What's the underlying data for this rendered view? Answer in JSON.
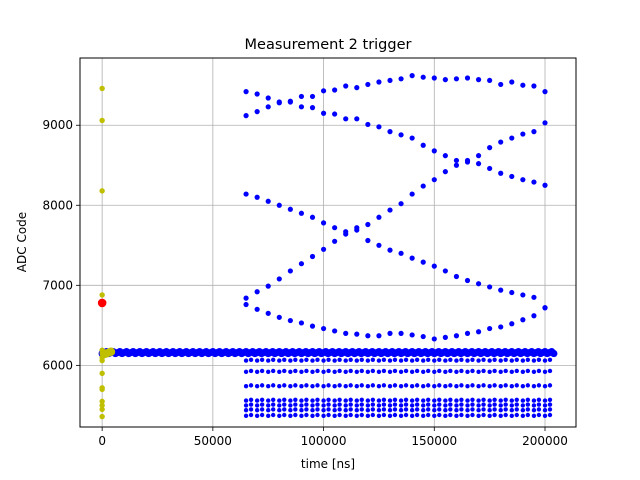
{
  "chart_data": {
    "type": "scatter",
    "title": "Measurement 2 trigger",
    "xlabel": "time [ns]",
    "ylabel": "ADC Code",
    "xlim": [
      -10000,
      214000
    ],
    "ylim": [
      5230,
      9840
    ],
    "xticks": [
      0,
      50000,
      100000,
      150000,
      200000
    ],
    "xtick_labels": [
      "0",
      "50000",
      "100000",
      "150000",
      "200000"
    ],
    "yticks": [
      6000,
      7000,
      8000,
      9000
    ],
    "ytick_labels": [
      "6000",
      "7000",
      "8000",
      "9000"
    ],
    "grid": true,
    "colors": {
      "blue": "#0000ff",
      "yellow": "#bfbf00",
      "red": "#ff0000",
      "grid": "#b0b0b0"
    },
    "baseline": {
      "level": 6160,
      "x_start": 0,
      "x_end": 204000,
      "step": 1000,
      "color": "blue"
    },
    "yellow_points": {
      "x": [
        0,
        0,
        0,
        0,
        0,
        0,
        0,
        0,
        0,
        0,
        0,
        0,
        0,
        0,
        0,
        1000,
        2000,
        3000,
        4000
      ],
      "y": [
        9460,
        9060,
        8180,
        6880,
        6190,
        6150,
        6100,
        6060,
        5900,
        5720,
        5700,
        5550,
        5500,
        5450,
        5360,
        6140,
        6150,
        6160,
        6170
      ]
    },
    "red_points": {
      "x": [
        0
      ],
      "y": [
        6780
      ]
    },
    "blue_bands": {
      "x_start": 65000,
      "x_end": 200000,
      "step": 5000,
      "levels": [
        6060,
        5920,
        5740,
        5560,
        5500,
        5440,
        5370
      ]
    },
    "blue_curves": [
      {
        "x": [
          65000,
          70000,
          75000,
          80000,
          85000,
          90000,
          95000,
          100000,
          105000,
          110000,
          115000,
          120000,
          125000,
          130000,
          135000,
          140000,
          145000,
          150000,
          155000,
          160000,
          165000,
          170000,
          175000,
          180000,
          185000,
          190000,
          195000,
          200000
        ],
        "y": [
          9420,
          9390,
          9340,
          9290,
          9290,
          9360,
          9360,
          9430,
          9440,
          9490,
          9470,
          9510,
          9540,
          9560,
          9580,
          9620,
          9600,
          9590,
          9570,
          9580,
          9590,
          9570,
          9560,
          9510,
          9540,
          9500,
          9490,
          9420
        ]
      },
      {
        "x": [
          65000,
          70000,
          75000,
          80000,
          85000,
          90000,
          95000,
          100000,
          105000,
          110000,
          115000,
          120000,
          125000,
          130000,
          135000,
          140000,
          145000,
          150000,
          155000,
          160000,
          165000,
          170000,
          175000,
          180000,
          185000,
          190000,
          195000,
          200000
        ],
        "y": [
          9120,
          9170,
          9230,
          9280,
          9300,
          9230,
          9220,
          9150,
          9140,
          9080,
          9080,
          9010,
          8980,
          8920,
          8880,
          8840,
          8750,
          8680,
          8620,
          8560,
          8540,
          8620,
          8720,
          8790,
          8840,
          8890,
          8920,
          9030
        ]
      },
      {
        "x": [
          65000,
          70000,
          75000,
          80000,
          85000,
          90000,
          95000,
          100000,
          105000,
          110000,
          115000,
          120000,
          125000,
          130000,
          135000,
          140000,
          145000,
          150000,
          155000,
          160000,
          165000,
          170000,
          175000,
          180000,
          185000,
          190000,
          195000,
          200000
        ],
        "y": [
          8140,
          8100,
          8050,
          8000,
          7950,
          7900,
          7850,
          7780,
          7720,
          7670,
          7690,
          7760,
          7850,
          7940,
          8020,
          8140,
          8240,
          8320,
          8420,
          8500,
          8560,
          8520,
          8460,
          8400,
          8360,
          8320,
          8290,
          8250
        ]
      },
      {
        "x": [
          65000,
          70000,
          75000,
          80000,
          85000,
          90000,
          95000,
          100000,
          105000,
          110000,
          115000,
          120000,
          125000,
          130000,
          135000,
          140000,
          145000,
          150000,
          155000,
          160000,
          165000,
          170000,
          175000,
          180000,
          185000,
          190000,
          195000,
          200000
        ],
        "y": [
          6840,
          6920,
          6990,
          7080,
          7180,
          7270,
          7360,
          7450,
          7550,
          7640,
          7720,
          7560,
          7500,
          7440,
          7400,
          7340,
          7290,
          7240,
          7180,
          7110,
          7060,
          7020,
          6980,
          6940,
          6910,
          6880,
          6850,
          6720
        ]
      },
      {
        "x": [
          65000,
          70000,
          75000,
          80000,
          85000,
          90000,
          95000,
          100000,
          105000,
          110000,
          115000,
          120000,
          125000,
          130000,
          135000,
          140000,
          145000,
          150000,
          155000,
          160000,
          165000,
          170000,
          175000,
          180000,
          185000,
          190000,
          195000,
          200000
        ],
        "y": [
          6760,
          6700,
          6650,
          6600,
          6560,
          6530,
          6490,
          6460,
          6430,
          6400,
          6390,
          6370,
          6370,
          6400,
          6400,
          6380,
          6360,
          6330,
          6350,
          6370,
          6400,
          6420,
          6460,
          6480,
          6520,
          6570,
          6620,
          6720
        ]
      }
    ]
  }
}
